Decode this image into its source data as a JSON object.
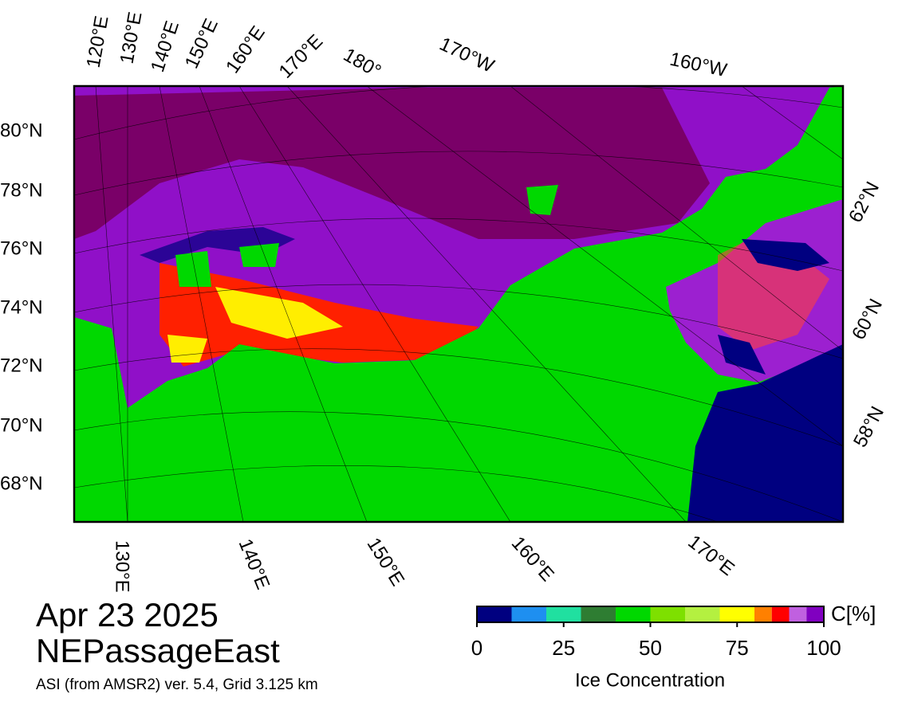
{
  "map": {
    "lon_labels_top": [
      "120°E",
      "130°E",
      "140°E",
      "150°E",
      "160°E",
      "170°E",
      "180°",
      "170°W",
      "160°W"
    ],
    "lat_labels_left": [
      "80°N",
      "78°N",
      "76°N",
      "74°N",
      "72°N",
      "70°N",
      "68°N"
    ],
    "lat_labels_right": [
      "62°N",
      "60°N",
      "58°N"
    ],
    "lon_labels_bottom": [
      "130°E",
      "140°E",
      "150°E",
      "160°E",
      "170°E"
    ]
  },
  "caption": {
    "date": "Apr 23 2025",
    "region": "NEPassageEast",
    "source": "ASI (from AMSR2) ver. 5.4,  Grid 3.125 km"
  },
  "colorbar": {
    "label": "Ice Concentration",
    "unit": "C[%]",
    "lim": [
      0,
      100
    ],
    "ticks": [
      0,
      25,
      50,
      75,
      100
    ],
    "bounds": [
      0,
      10,
      20,
      30,
      40,
      50,
      60,
      70,
      80,
      85,
      90,
      95,
      100
    ],
    "colors": [
      "#000080",
      "#1e8ff0",
      "#20e0a0",
      "#2e7d32",
      "#00d800",
      "#7ee000",
      "#b4f040",
      "#ffff00",
      "#ff8000",
      "#ff0000",
      "#c060e0",
      "#8000c0"
    ]
  }
}
